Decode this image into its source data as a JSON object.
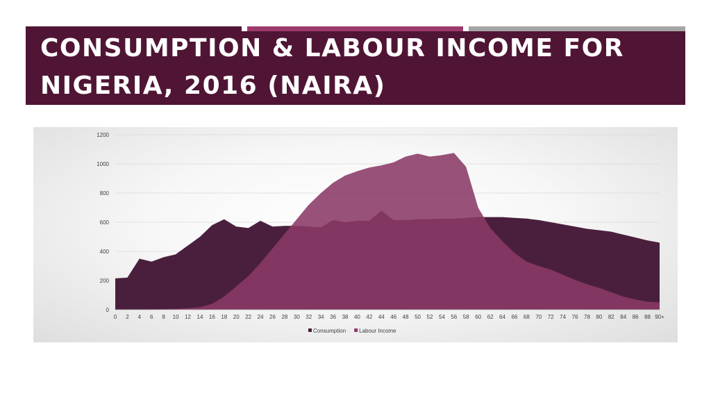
{
  "slide": {
    "title_line1": "CONSUMPTION & LABOUR INCOME FOR",
    "title_line2": "NIGERIA, 2016 (NAIRA)",
    "title_bg": "#501534",
    "accent_colors": [
      "#501534",
      "#9c3a6c",
      "#a6a6a6"
    ]
  },
  "chart_data": {
    "type": "area",
    "x": [
      0,
      2,
      4,
      6,
      8,
      10,
      12,
      14,
      16,
      18,
      20,
      22,
      24,
      26,
      28,
      30,
      32,
      34,
      36,
      38,
      40,
      42,
      44,
      46,
      48,
      50,
      52,
      54,
      56,
      58,
      60,
      62,
      64,
      66,
      68,
      70,
      72,
      74,
      76,
      78,
      80,
      82,
      84,
      86,
      88,
      90
    ],
    "x_tick_labels": [
      "0",
      "2",
      "4",
      "6",
      "8",
      "10",
      "12",
      "14",
      "16",
      "18",
      "20",
      "22",
      "24",
      "26",
      "28",
      "30",
      "32",
      "34",
      "36",
      "38",
      "40",
      "42",
      "44",
      "46",
      "48",
      "50",
      "52",
      "54",
      "56",
      "58",
      "60",
      "62",
      "64",
      "66",
      "68",
      "70",
      "72",
      "74",
      "76",
      "78",
      "80",
      "82",
      "84",
      "86",
      "88",
      "90+"
    ],
    "ylim": [
      0,
      1200
    ],
    "y_ticks": [
      0,
      200,
      400,
      600,
      800,
      1000,
      1200
    ],
    "grid": true,
    "legend_position": "bottom",
    "series": [
      {
        "name": "Consumption",
        "color": "#4a1f3d",
        "values": [
          215,
          220,
          350,
          330,
          360,
          380,
          440,
          500,
          580,
          620,
          570,
          560,
          610,
          570,
          575,
          575,
          570,
          565,
          615,
          600,
          610,
          610,
          680,
          615,
          615,
          620,
          620,
          625,
          625,
          630,
          635,
          635,
          635,
          630,
          625,
          615,
          600,
          585,
          570,
          555,
          545,
          535,
          515,
          495,
          475,
          460
        ]
      },
      {
        "name": "Labour Income",
        "color": "#8a3a66",
        "values": [
          0,
          0,
          0,
          2,
          4,
          6,
          10,
          18,
          40,
          90,
          160,
          230,
          320,
          420,
          520,
          620,
          720,
          800,
          870,
          920,
          950,
          975,
          990,
          1010,
          1050,
          1070,
          1050,
          1060,
          1075,
          980,
          700,
          560,
          470,
          390,
          330,
          300,
          275,
          240,
          205,
          175,
          150,
          120,
          90,
          70,
          55,
          50
        ]
      }
    ]
  }
}
